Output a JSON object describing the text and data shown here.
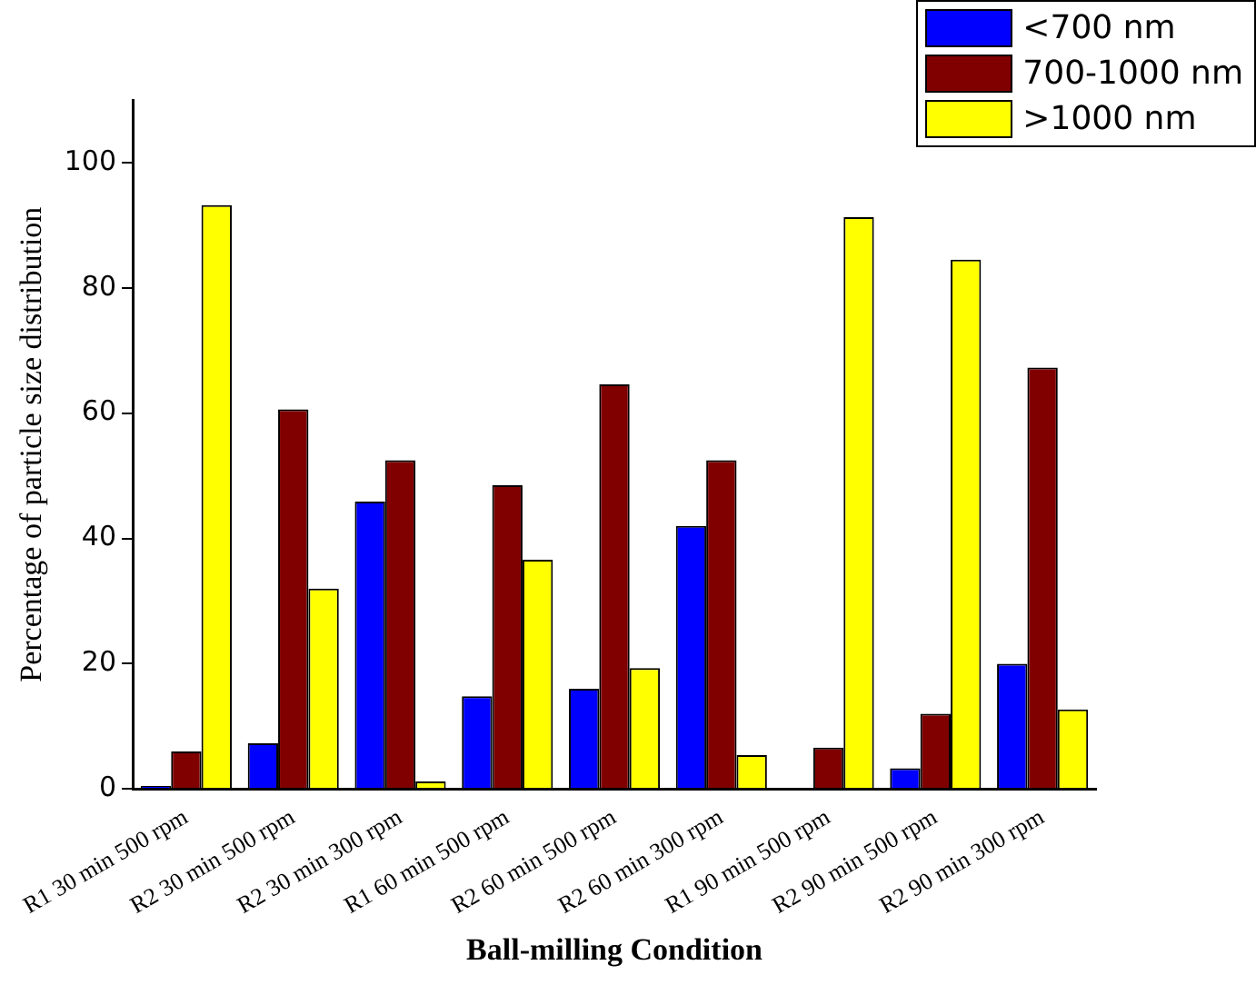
{
  "chart_data": {
    "type": "bar",
    "xlabel": "Ball-milling Condition",
    "ylabel": "Percentage of particle size distribution",
    "categories": [
      "R1 30 min 500 rpm",
      "R2 30 min 500 rpm",
      "R2 30 min 300 rpm",
      "R1 60 min 500 rpm",
      "R2 60 min 500 rpm",
      "R2 60 min 300 rpm",
      "R1 90 min 500 rpm",
      "R2 90 min 500 rpm",
      "R2 90 min 300 rpm"
    ],
    "series": [
      {
        "name": "<700 nm",
        "color": "#0000ff",
        "values": [
          0.5,
          7.3,
          45.9,
          14.8,
          16,
          42,
          0,
          3.3,
          20
        ]
      },
      {
        "name": "700-1000 nm",
        "color": "#800000",
        "values": [
          6,
          60.6,
          52.5,
          48.5,
          64.6,
          52.5,
          6.6,
          12,
          67.3
        ]
      },
      {
        "name": ">1000 nm",
        "color": "#ffff00",
        "values": [
          93.2,
          32,
          1.2,
          36.6,
          19.3,
          5.4,
          91.3,
          84.5,
          12.7
        ]
      }
    ],
    "ylim": [
      0,
      110
    ],
    "yticks": [
      0,
      20,
      40,
      60,
      80,
      100
    ],
    "grid": false,
    "legend": "top right"
  }
}
